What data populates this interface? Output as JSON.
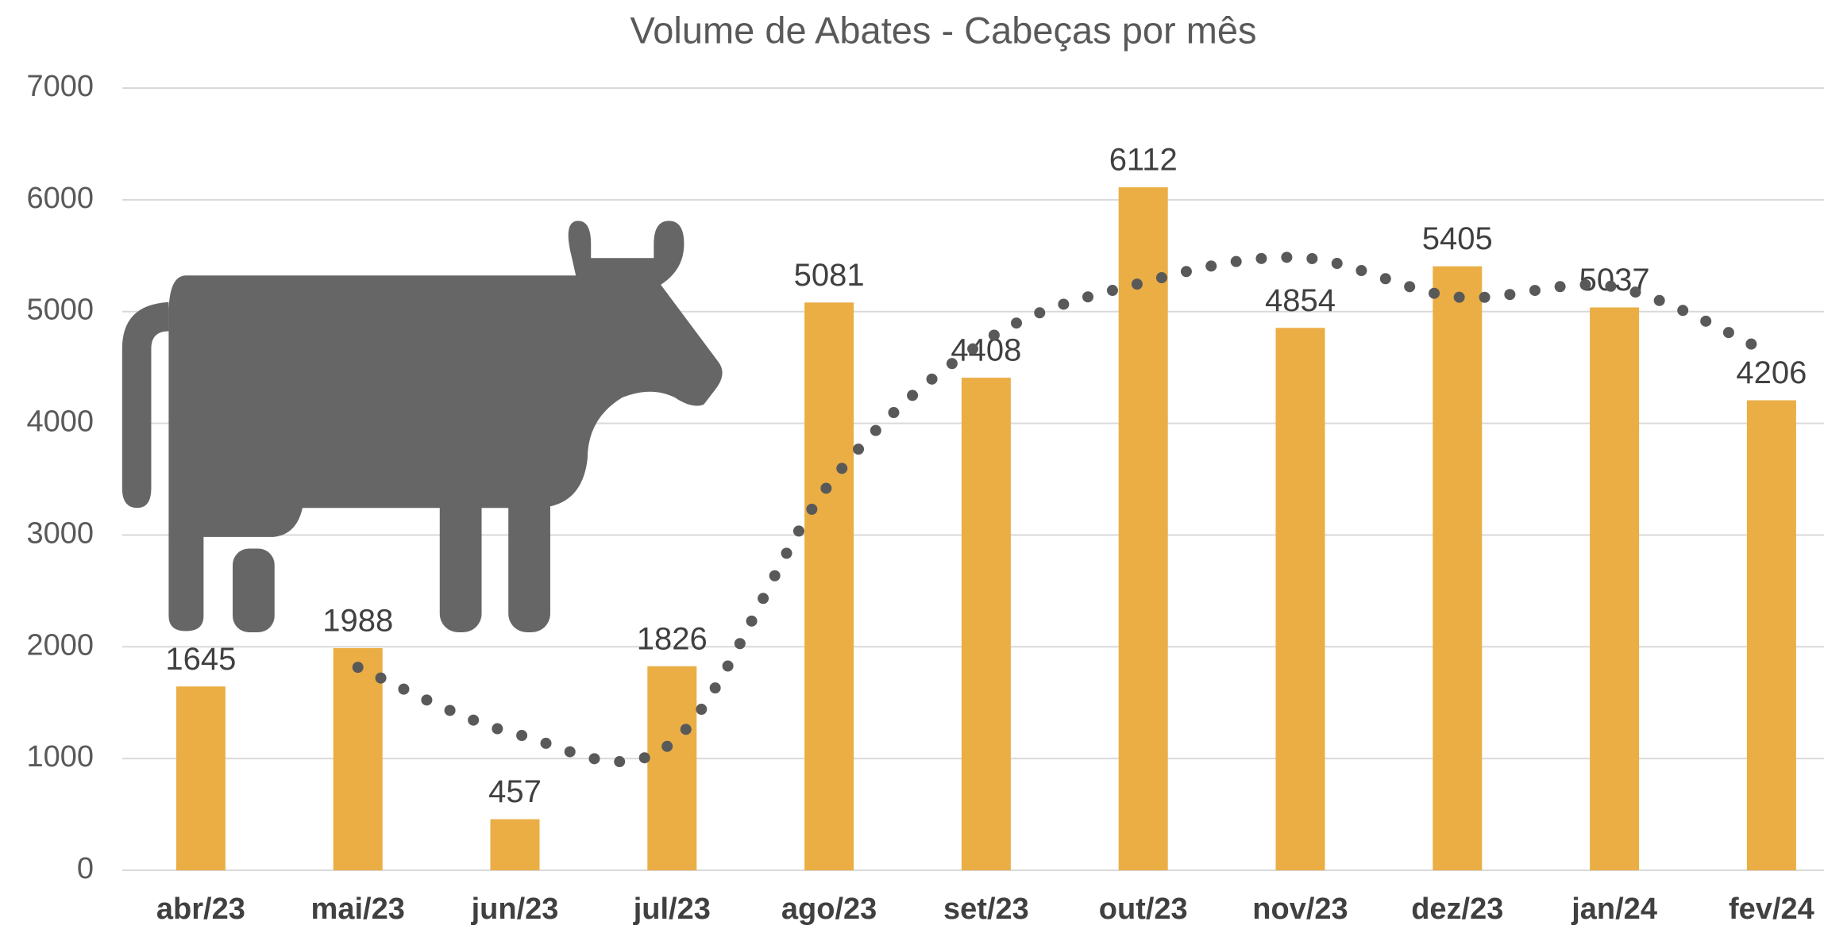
{
  "chart_data": {
    "type": "bar",
    "title": "Volume de Abates - Cabeças por mês",
    "categories": [
      "abr/23",
      "mai/23",
      "jun/23",
      "jul/23",
      "ago/23",
      "set/23",
      "out/23",
      "nov/23",
      "dez/23",
      "jan/24",
      "fev/24"
    ],
    "values": [
      1645,
      1988,
      457,
      1826,
      5081,
      4408,
      6112,
      4854,
      5405,
      5037,
      4206
    ],
    "color": "#eaae45",
    "ylim": [
      0,
      7000
    ],
    "yticks": [
      0,
      1000,
      2000,
      3000,
      4000,
      5000,
      6000,
      7000
    ],
    "grid": true
  }
}
